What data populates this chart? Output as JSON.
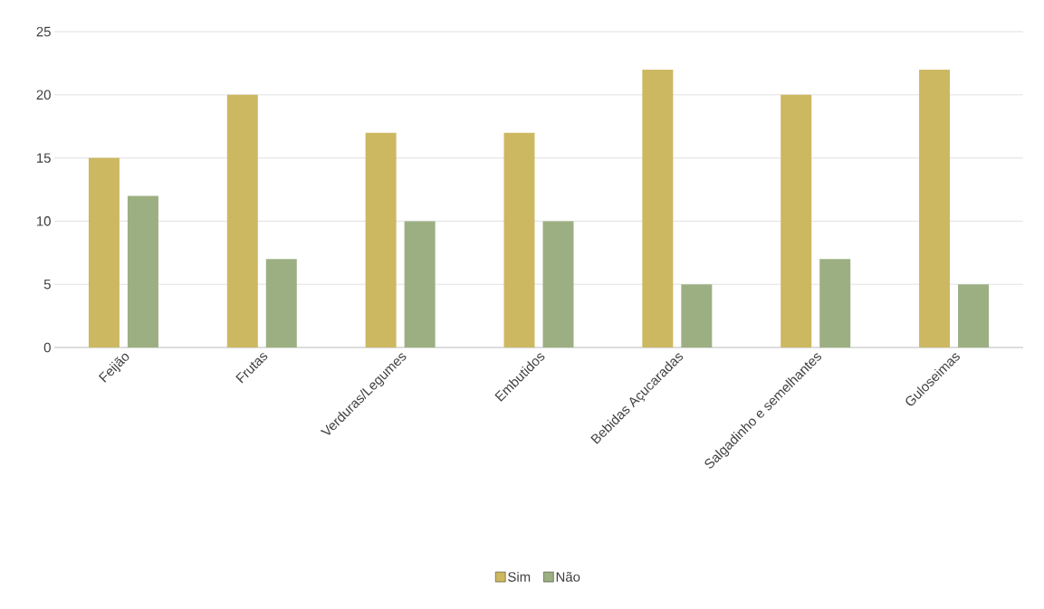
{
  "chart_data": {
    "type": "bar",
    "categories": [
      "Feijão",
      "Frutas",
      "Verduras/Legumes",
      "Embutidos",
      "Bebidas Açucaradas",
      "Salgadinho e semelhantes",
      "Guloseimas"
    ],
    "series": [
      {
        "name": "Sim",
        "color": "#cdb862",
        "values": [
          15,
          20,
          17,
          17,
          22,
          20,
          22
        ]
      },
      {
        "name": "Não",
        "color": "#9caf82",
        "values": [
          12,
          7,
          10,
          10,
          5,
          7,
          5
        ]
      }
    ],
    "ylim": [
      0,
      25
    ],
    "yticks": [
      0,
      5,
      10,
      15,
      20,
      25
    ],
    "grid": "y",
    "legend": "bottom"
  }
}
